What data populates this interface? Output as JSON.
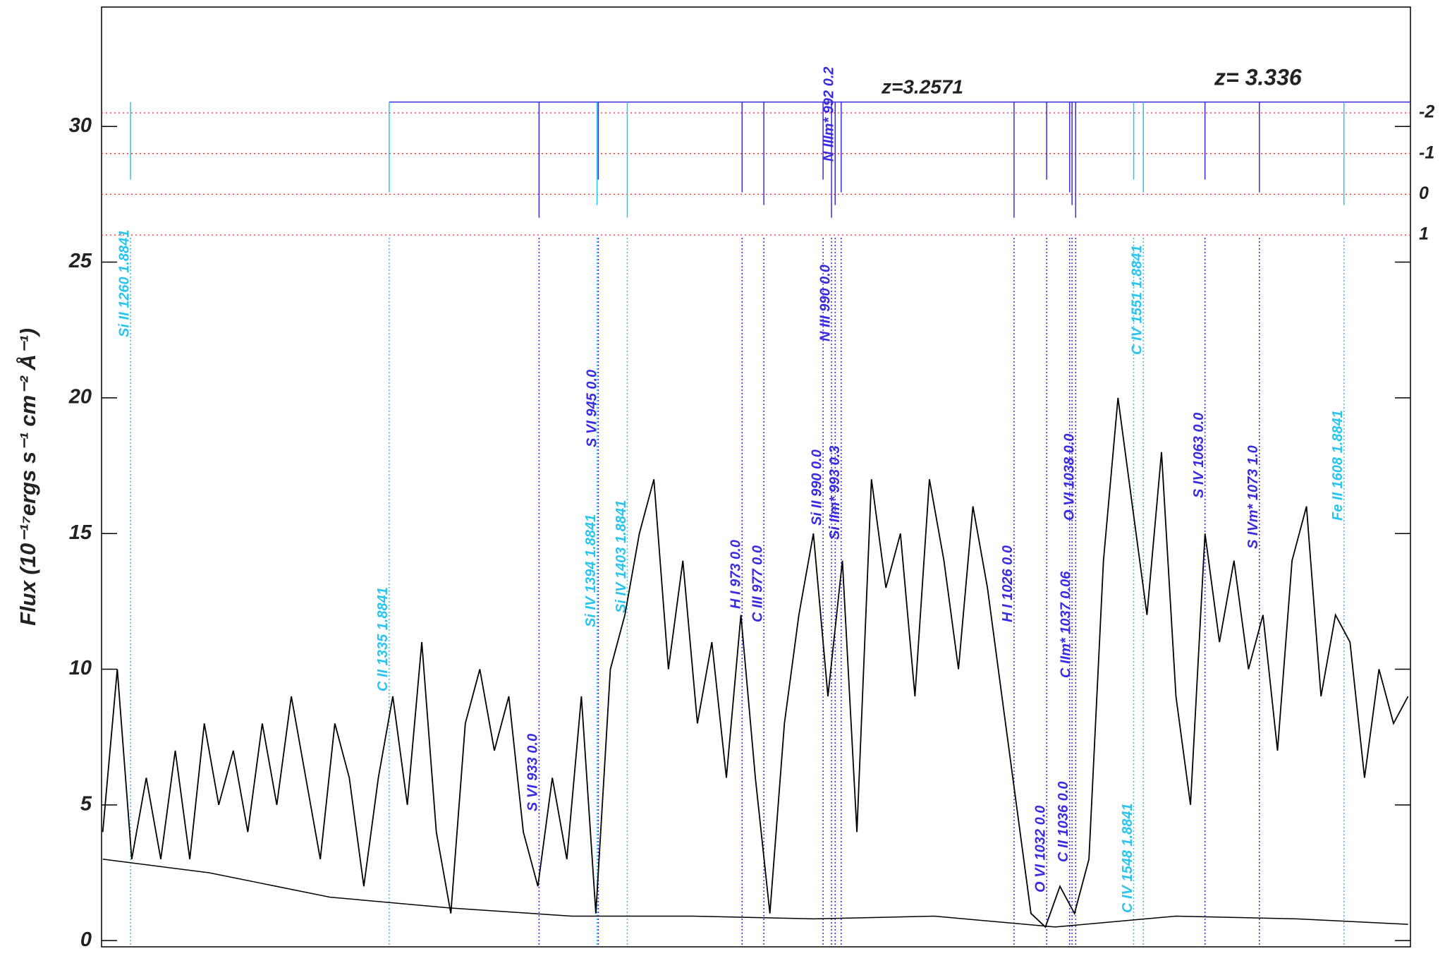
{
  "chart_data": {
    "type": "line",
    "ylabel": "Flux (10⁻¹⁷ergs s⁻¹ cm⁻² Å⁻¹)",
    "annotations": [
      {
        "text": "z=3.2571",
        "color": "#3a2be0"
      },
      {
        "text": "z= 3.336",
        "color": "#222222"
      }
    ],
    "xlim": [
      3611,
      4694
    ],
    "ylim": [
      -0.23,
      34.4
    ],
    "yticks": [
      0,
      5,
      10,
      15,
      20,
      25,
      30
    ],
    "right_labels": [
      {
        "value": 30.5,
        "label": "-2"
      },
      {
        "value": 29,
        "label": "-1"
      },
      {
        "value": 27.5,
        "label": "0"
      },
      {
        "value": 26,
        "label": "1"
      }
    ],
    "right_color": "#ff2020",
    "x": [
      3612,
      3624,
      3636,
      3648,
      3660,
      3672,
      3684,
      3696,
      3708,
      3720,
      3732,
      3744,
      3756,
      3768,
      3780,
      3792,
      3804,
      3816,
      3828,
      3840,
      3852,
      3864,
      3876,
      3888,
      3900,
      3912,
      3924,
      3936,
      3948,
      3960,
      3972,
      3984,
      3996,
      4008,
      4020,
      4032,
      4044,
      4056,
      4068,
      4080,
      4092,
      4104,
      4116,
      4128,
      4140,
      4152,
      4164,
      4176,
      4188,
      4200,
      4212,
      4224,
      4236,
      4248,
      4260,
      4272,
      4284,
      4296,
      4308,
      4320,
      4332,
      4344,
      4356,
      4368,
      4380,
      4392,
      4404,
      4416,
      4428,
      4440,
      4452,
      4464,
      4476,
      4488,
      4500,
      4512,
      4524,
      4536,
      4548,
      4560,
      4572,
      4584,
      4596,
      4608,
      4620,
      4632,
      4644,
      4656,
      4668,
      4680,
      4692
    ],
    "series": [
      {
        "name": "flux",
        "color": "#000000",
        "values": [
          4,
          10,
          3,
          6,
          3,
          7,
          3,
          8,
          5,
          7,
          4,
          8,
          5,
          9,
          6,
          3,
          8,
          6,
          2,
          6,
          9,
          5,
          11,
          4,
          1,
          8,
          10,
          7,
          9,
          4,
          2,
          6,
          3,
          9,
          1,
          10,
          12,
          15,
          17,
          10,
          14,
          8,
          11,
          6,
          12,
          6,
          1,
          8,
          12,
          15,
          9,
          14,
          4,
          17,
          13,
          15,
          9,
          17,
          14,
          10,
          16,
          13,
          9,
          5,
          1,
          0.5,
          2,
          1,
          3,
          14,
          20,
          16,
          12,
          18,
          9,
          5,
          15,
          11,
          14,
          10,
          12,
          7,
          14,
          16,
          9,
          12,
          11,
          6,
          10,
          8,
          9
        ]
      }
    ],
    "error_x": [
      3612,
      3700,
      3800,
      3900,
      4000,
      4100,
      4200,
      4300,
      4400,
      4500,
      4600,
      4692
    ],
    "error_values": [
      3,
      2.5,
      1.6,
      1.2,
      0.9,
      0.9,
      0.8,
      0.9,
      0.5,
      0.9,
      0.8,
      0.6
    ],
    "lines": [
      {
        "label": "Si II 1260 1.8841",
        "x": 3635,
        "color": "#29c4f0"
      },
      {
        "label": "C II 1335 1.8841",
        "x": 3849,
        "color": "#29c4f0"
      },
      {
        "label": "Si IV 1394 1.8841",
        "x": 4021,
        "color": "#29c4f0"
      },
      {
        "label": "Si IV 1403 1.8841",
        "x": 4046,
        "color": "#29c4f0"
      },
      {
        "label": "C IV 1548 1.8841",
        "x": 4465,
        "color": "#29c4f0"
      },
      {
        "label": "C IV 1551 1.8841",
        "x": 4473,
        "color": "#29c4f0"
      },
      {
        "label": "Fe II 1608 1.8841",
        "x": 4639,
        "color": "#29c4f0"
      },
      {
        "label": "S VI 933 0.0",
        "x": 3973,
        "color": "#3a2be0"
      },
      {
        "label": "S VI 945 0.0",
        "x": 4022,
        "color": "#3a2be0"
      },
      {
        "label": "H I 973 0.0",
        "x": 4141,
        "color": "#3a2be0"
      },
      {
        "label": "C III 977 0.0",
        "x": 4159,
        "color": "#3a2be0"
      },
      {
        "label": "N III 990 0.0",
        "x": 4215,
        "color": "#3a2be0"
      },
      {
        "label": "Si II 990 0.0",
        "x": 4208,
        "color": "#3a2be0"
      },
      {
        "label": "Si IIm* 993 0.3",
        "x": 4223,
        "color": "#3a2be0"
      },
      {
        "label": "N IIIm* 992 0.2",
        "x": 4218,
        "color": "#3a2be0"
      },
      {
        "label": "H I 1026 0.0",
        "x": 4366,
        "color": "#3a2be0"
      },
      {
        "label": "O VI 1032 0.0",
        "x": 4393,
        "color": "#3a2be0"
      },
      {
        "label": "C II 1036 0.0",
        "x": 4412,
        "color": "#3a2be0"
      },
      {
        "label": "C IIm* 1037 0.06",
        "x": 4414,
        "color": "#3a2be0"
      },
      {
        "label": "O VI 1038 0.0",
        "x": 4417,
        "color": "#3a2be0"
      },
      {
        "label": "S IV 1063 0.0",
        "x": 4524,
        "color": "#3a2be0"
      },
      {
        "label": "S IVm* 1073 1.0",
        "x": 4569,
        "color": "#3a2be0"
      }
    ]
  }
}
